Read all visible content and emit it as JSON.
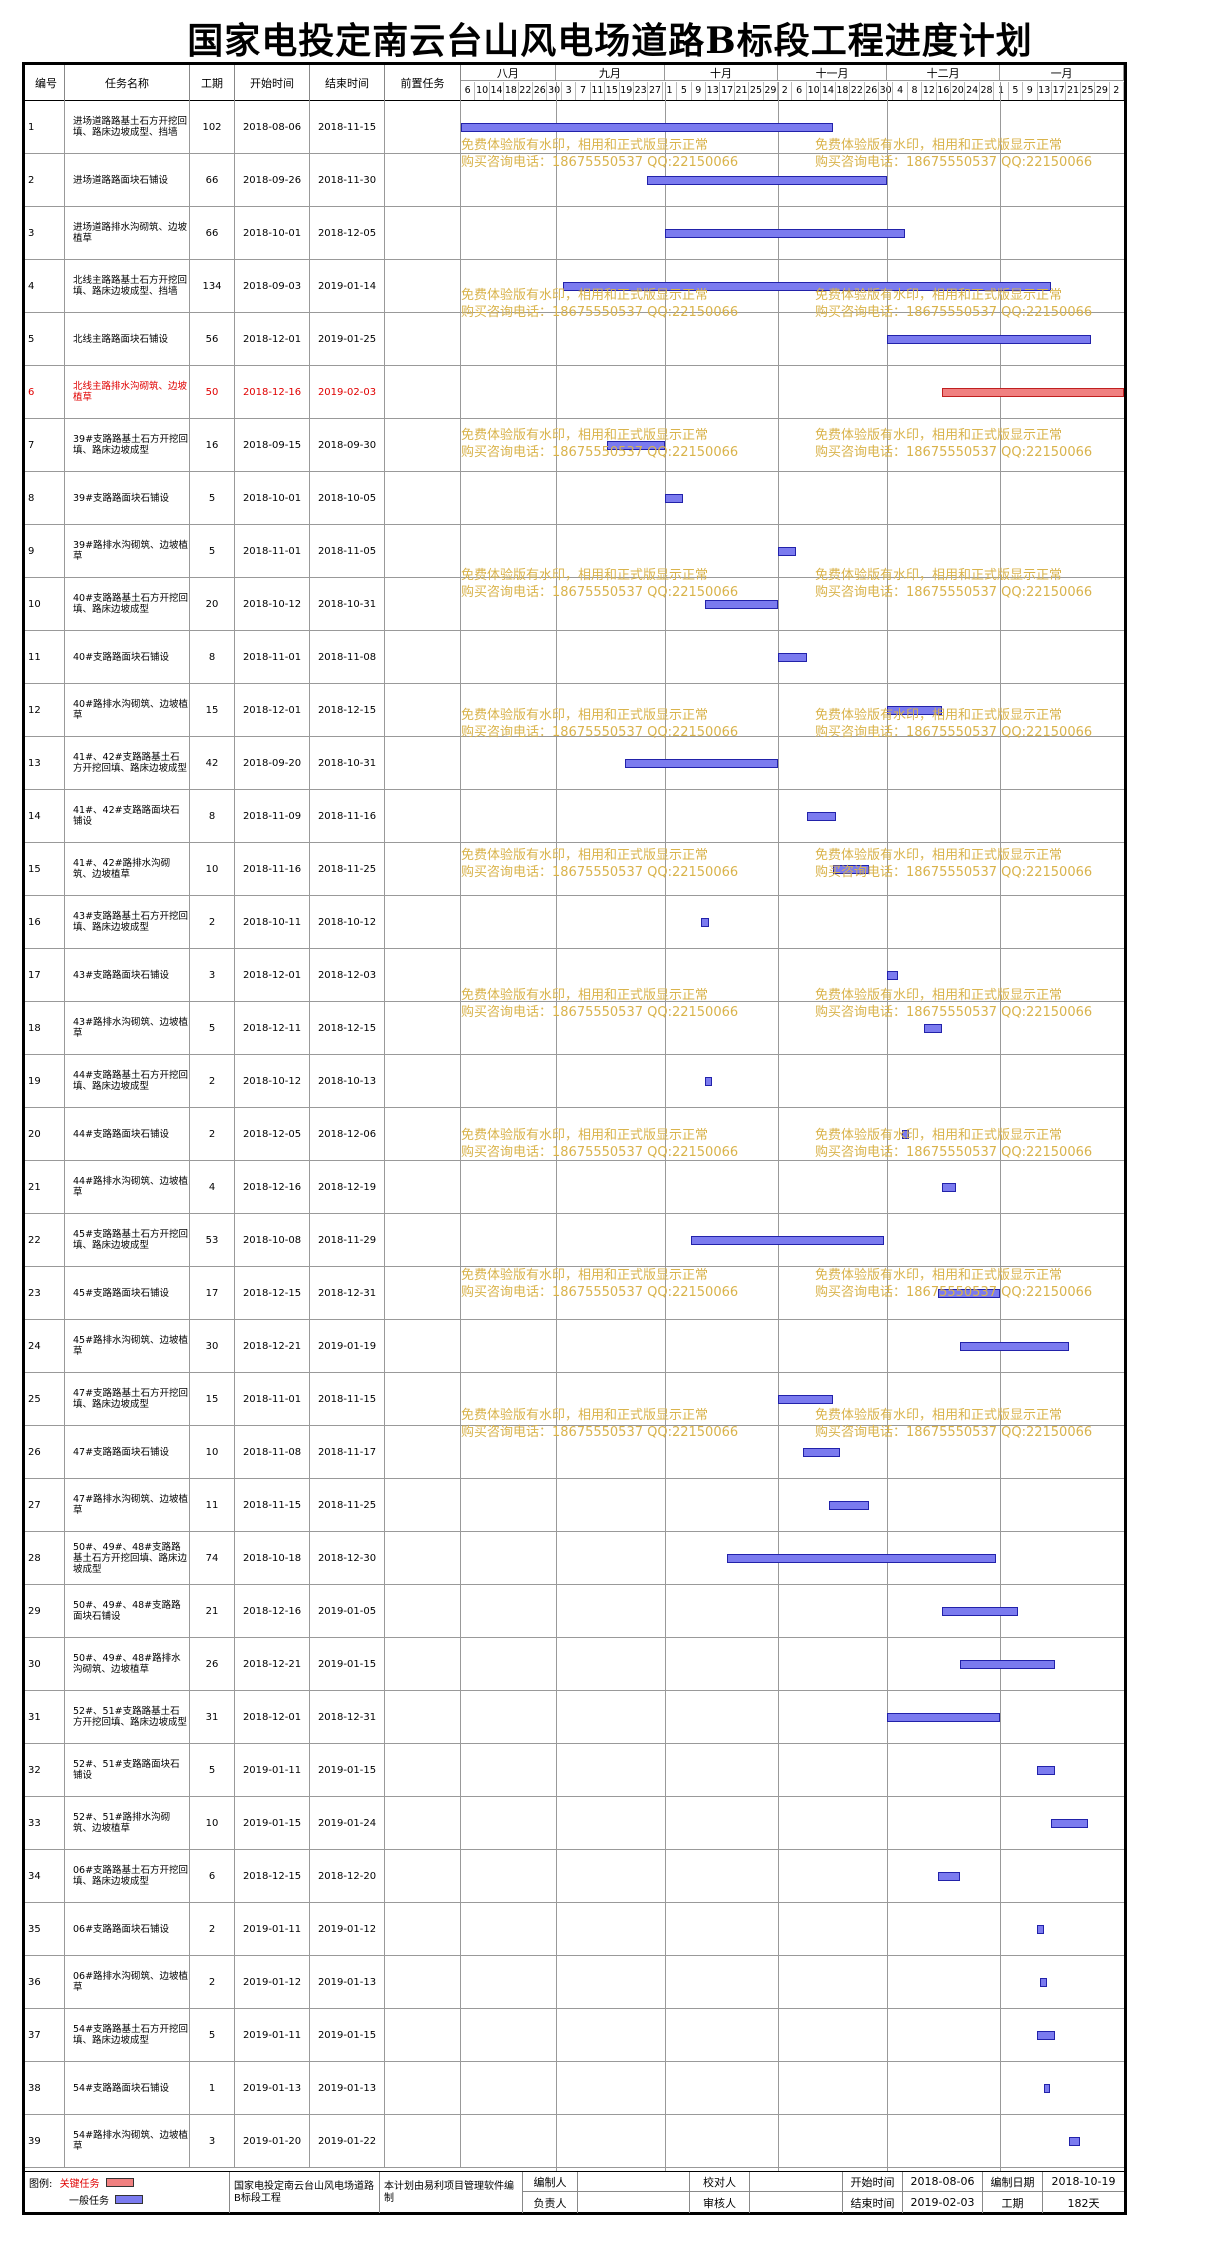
{
  "title": "国家电投定南云台山风电场道路B标段工程进度计划",
  "headers": {
    "id": "编号",
    "name": "任务名称",
    "dur": "工期",
    "start": "开始时间",
    "end": "结束时间",
    "pre": "前置任务"
  },
  "months": [
    "八月",
    "九月",
    "十月",
    "十一月",
    "十二月",
    "一月"
  ],
  "day_ticks": [
    "6",
    "10",
    "14",
    "18",
    "22",
    "26",
    "30",
    "3",
    "7",
    "11",
    "15",
    "19",
    "23",
    "27",
    "1",
    "5",
    "9",
    "13",
    "17",
    "21",
    "25",
    "29",
    "2",
    "6",
    "10",
    "14",
    "18",
    "22",
    "26",
    "30",
    "4",
    "8",
    "12",
    "16",
    "20",
    "24",
    "28",
    "1",
    "5",
    "9",
    "13",
    "17",
    "21",
    "25",
    "29",
    "2"
  ],
  "tasks": [
    {
      "id": "1",
      "name": "进场道路路基土石方开挖回填、路床边坡成型、挡墙",
      "dur": "102",
      "start": "2018-08-06",
      "end": "2018-11-15",
      "s": 0,
      "e": 101,
      "critical": false
    },
    {
      "id": "2",
      "name": "进场道路路面块石铺设",
      "dur": "66",
      "start": "2018-09-26",
      "end": "2018-11-30",
      "s": 51,
      "e": 116,
      "critical": false
    },
    {
      "id": "3",
      "name": "进场道路排水沟砌筑、边坡植草",
      "dur": "66",
      "start": "2018-10-01",
      "end": "2018-12-05",
      "s": 56,
      "e": 121,
      "critical": false
    },
    {
      "id": "4",
      "name": "北线主路路基土石方开挖回填、路床边坡成型、挡墙",
      "dur": "134",
      "start": "2018-09-03",
      "end": "2019-01-14",
      "s": 28,
      "e": 161,
      "critical": false
    },
    {
      "id": "5",
      "name": "北线主路路面块石铺设",
      "dur": "56",
      "start": "2018-12-01",
      "end": "2019-01-25",
      "s": 117,
      "e": 172,
      "critical": false
    },
    {
      "id": "6",
      "name": "北线主路排水沟砌筑、边坡植草",
      "dur": "50",
      "start": "2018-12-16",
      "end": "2019-02-03",
      "s": 132,
      "e": 181,
      "critical": true
    },
    {
      "id": "7",
      "name": "39#支路路基土石方开挖回填、路床边坡成型",
      "dur": "16",
      "start": "2018-09-15",
      "end": "2018-09-30",
      "s": 40,
      "e": 55,
      "critical": false
    },
    {
      "id": "8",
      "name": "39#支路路面块石铺设",
      "dur": "5",
      "start": "2018-10-01",
      "end": "2018-10-05",
      "s": 56,
      "e": 60,
      "critical": false
    },
    {
      "id": "9",
      "name": "39#路排水沟砌筑、边坡植草",
      "dur": "5",
      "start": "2018-11-01",
      "end": "2018-11-05",
      "s": 87,
      "e": 91,
      "critical": false
    },
    {
      "id": "10",
      "name": "40#支路路基土石方开挖回填、路床边坡成型",
      "dur": "20",
      "start": "2018-10-12",
      "end": "2018-10-31",
      "s": 67,
      "e": 86,
      "critical": false
    },
    {
      "id": "11",
      "name": "40#支路路面块石铺设",
      "dur": "8",
      "start": "2018-11-01",
      "end": "2018-11-08",
      "s": 87,
      "e": 94,
      "critical": false
    },
    {
      "id": "12",
      "name": "40#路排水沟砌筑、边坡植草",
      "dur": "15",
      "start": "2018-12-01",
      "end": "2018-12-15",
      "s": 117,
      "e": 131,
      "critical": false
    },
    {
      "id": "13",
      "name": "41#、42#支路路基土石方开挖回填、路床边坡成型",
      "dur": "42",
      "start": "2018-09-20",
      "end": "2018-10-31",
      "s": 45,
      "e": 86,
      "critical": false
    },
    {
      "id": "14",
      "name": "41#、42#支路路面块石铺设",
      "dur": "8",
      "start": "2018-11-09",
      "end": "2018-11-16",
      "s": 95,
      "e": 102,
      "critical": false
    },
    {
      "id": "15",
      "name": "41#、42#路排水沟砌筑、边坡植草",
      "dur": "10",
      "start": "2018-11-16",
      "end": "2018-11-25",
      "s": 102,
      "e": 111,
      "critical": false
    },
    {
      "id": "16",
      "name": "43#支路路基土石方开挖回填、路床边坡成型",
      "dur": "2",
      "start": "2018-10-11",
      "end": "2018-10-12",
      "s": 66,
      "e": 67,
      "critical": false
    },
    {
      "id": "17",
      "name": "43#支路路面块石铺设",
      "dur": "3",
      "start": "2018-12-01",
      "end": "2018-12-03",
      "s": 117,
      "e": 119,
      "critical": false
    },
    {
      "id": "18",
      "name": "43#路排水沟砌筑、边坡植草",
      "dur": "5",
      "start": "2018-12-11",
      "end": "2018-12-15",
      "s": 127,
      "e": 131,
      "critical": false
    },
    {
      "id": "19",
      "name": "44#支路路基土石方开挖回填、路床边坡成型",
      "dur": "2",
      "start": "2018-10-12",
      "end": "2018-10-13",
      "s": 67,
      "e": 68,
      "critical": false
    },
    {
      "id": "20",
      "name": "44#支路路面块石铺设",
      "dur": "2",
      "start": "2018-12-05",
      "end": "2018-12-06",
      "s": 121,
      "e": 122,
      "critical": false
    },
    {
      "id": "21",
      "name": "44#路排水沟砌筑、边坡植草",
      "dur": "4",
      "start": "2018-12-16",
      "end": "2018-12-19",
      "s": 132,
      "e": 135,
      "critical": false
    },
    {
      "id": "22",
      "name": "45#支路路基土石方开挖回填、路床边坡成型",
      "dur": "53",
      "start": "2018-10-08",
      "end": "2018-11-29",
      "s": 63,
      "e": 115,
      "critical": false
    },
    {
      "id": "23",
      "name": "45#支路路面块石铺设",
      "dur": "17",
      "start": "2018-12-15",
      "end": "2018-12-31",
      "s": 131,
      "e": 147,
      "critical": false
    },
    {
      "id": "24",
      "name": "45#路排水沟砌筑、边坡植草",
      "dur": "30",
      "start": "2018-12-21",
      "end": "2019-01-19",
      "s": 137,
      "e": 166,
      "critical": false
    },
    {
      "id": "25",
      "name": "47#支路路基土石方开挖回填、路床边坡成型",
      "dur": "15",
      "start": "2018-11-01",
      "end": "2018-11-15",
      "s": 87,
      "e": 101,
      "critical": false
    },
    {
      "id": "26",
      "name": "47#支路路面块石铺设",
      "dur": "10",
      "start": "2018-11-08",
      "end": "2018-11-17",
      "s": 94,
      "e": 103,
      "critical": false
    },
    {
      "id": "27",
      "name": "47#路排水沟砌筑、边坡植草",
      "dur": "11",
      "start": "2018-11-15",
      "end": "2018-11-25",
      "s": 101,
      "e": 111,
      "critical": false
    },
    {
      "id": "28",
      "name": "50#、49#、48#支路路基土石方开挖回填、路床边坡成型",
      "dur": "74",
      "start": "2018-10-18",
      "end": "2018-12-30",
      "s": 73,
      "e": 146,
      "critical": false
    },
    {
      "id": "29",
      "name": "50#、49#、48#支路路面块石铺设",
      "dur": "21",
      "start": "2018-12-16",
      "end": "2019-01-05",
      "s": 132,
      "e": 152,
      "critical": false
    },
    {
      "id": "30",
      "name": "50#、49#、48#路排水沟砌筑、边坡植草",
      "dur": "26",
      "start": "2018-12-21",
      "end": "2019-01-15",
      "s": 137,
      "e": 162,
      "critical": false
    },
    {
      "id": "31",
      "name": "52#、51#支路路基土石方开挖回填、路床边坡成型",
      "dur": "31",
      "start": "2018-12-01",
      "end": "2018-12-31",
      "s": 117,
      "e": 147,
      "critical": false
    },
    {
      "id": "32",
      "name": "52#、51#支路路面块石铺设",
      "dur": "5",
      "start": "2019-01-11",
      "end": "2019-01-15",
      "s": 158,
      "e": 162,
      "critical": false
    },
    {
      "id": "33",
      "name": "52#、51#路排水沟砌筑、边坡植草",
      "dur": "10",
      "start": "2019-01-15",
      "end": "2019-01-24",
      "s": 162,
      "e": 171,
      "critical": false
    },
    {
      "id": "34",
      "name": "06#支路路基土石方开挖回填、路床边坡成型",
      "dur": "6",
      "start": "2018-12-15",
      "end": "2018-12-20",
      "s": 131,
      "e": 136,
      "critical": false
    },
    {
      "id": "35",
      "name": "06#支路路面块石铺设",
      "dur": "2",
      "start": "2019-01-11",
      "end": "2019-01-12",
      "s": 158,
      "e": 159,
      "critical": false
    },
    {
      "id": "36",
      "name": "06#路排水沟砌筑、边坡植草",
      "dur": "2",
      "start": "2019-01-12",
      "end": "2019-01-13",
      "s": 159,
      "e": 160,
      "critical": false
    },
    {
      "id": "37",
      "name": "54#支路路基土石方开挖回填、路床边坡成型",
      "dur": "5",
      "start": "2019-01-11",
      "end": "2019-01-15",
      "s": 158,
      "e": 162,
      "critical": false
    },
    {
      "id": "38",
      "name": "54#支路路面块石铺设",
      "dur": "1",
      "start": "2019-01-13",
      "end": "2019-01-13",
      "s": 160,
      "e": 160,
      "critical": false
    },
    {
      "id": "39",
      "name": "54#路排水沟砌筑、边坡植草",
      "dur": "3",
      "start": "2019-01-20",
      "end": "2019-01-22",
      "s": 167,
      "e": 169,
      "critical": false
    }
  ],
  "watermark": {
    "line1": "免费体验版有水印，相用和正式版显示正常",
    "line2": "购买咨询电话：18675550537 QQ:22150066"
  },
  "footer": {
    "legend_label": "图例:",
    "legend_critical": "关键任务",
    "legend_normal": "一般任务",
    "project": "国家电投定南云台山风电场道路B标段工程",
    "software": "本计划由易利项目管理软件编制",
    "editor_label": "编制人",
    "owner_label": "负责人",
    "checker_label": "校对人",
    "reviewer_label": "审核人",
    "start_label": "开始时间",
    "start_value": "2018-08-06",
    "end_label": "结束时间",
    "end_value": "2019-02-03",
    "date_label": "编制日期",
    "date_value": "2018-10-19",
    "dur_label": "工期",
    "dur_value": "182天"
  },
  "colors": {
    "normal_bar": "#7b7bef",
    "critical_bar": "#f08080",
    "critical_text": "#e00000",
    "watermark": "#d9b34b"
  }
}
